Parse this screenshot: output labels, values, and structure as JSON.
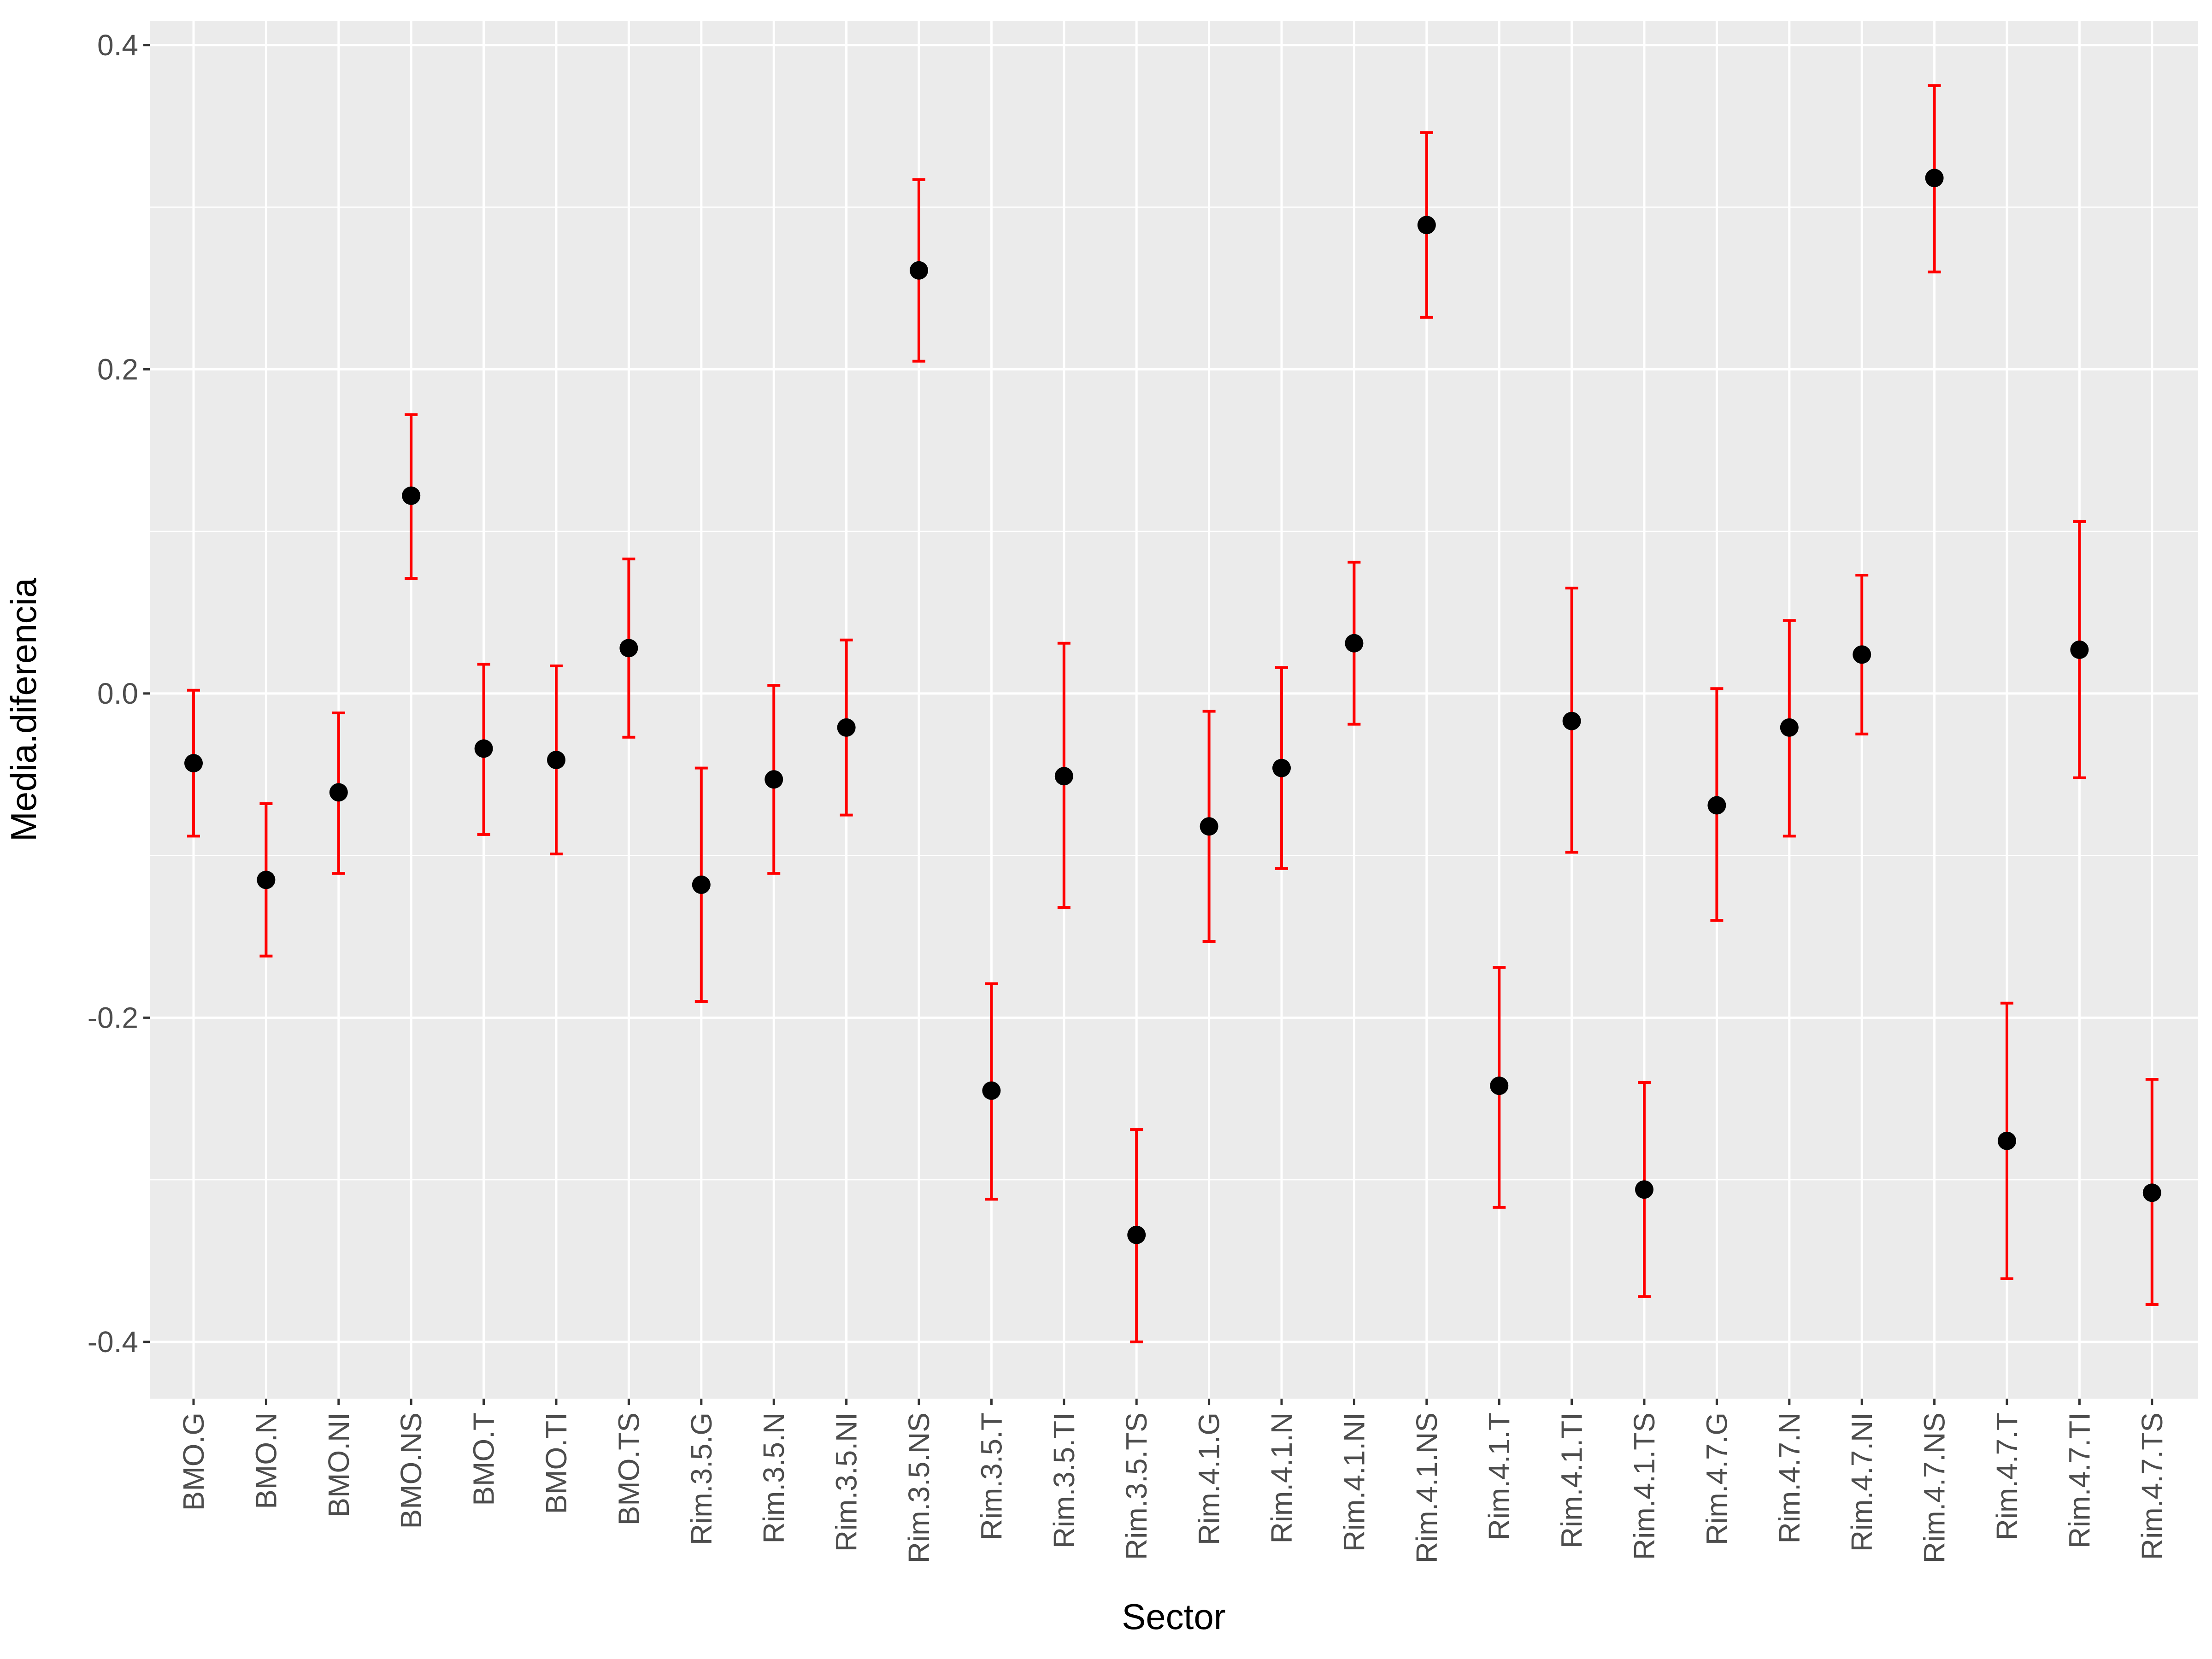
{
  "chart_data": {
    "type": "scatter",
    "title": "",
    "xlabel": "Sector",
    "ylabel": "Media.diferencia",
    "ylim": [
      -0.435,
      0.415
    ],
    "yticks": [
      -0.4,
      -0.2,
      0.0,
      0.2,
      0.4
    ],
    "ytick_labels": [
      "-0.4",
      "-0.2",
      "0.0",
      "0.2",
      "0.4"
    ],
    "grid": true,
    "legend": "none",
    "colors": {
      "panel": "#ebebeb",
      "grid": "#ffffff",
      "point": "#000000",
      "errorbar": "#ff0000",
      "tick": "#4d4d4d"
    },
    "categories": [
      "BMO.G",
      "BMO.N",
      "BMO.NI",
      "BMO.NS",
      "BMO.T",
      "BMO.TI",
      "BMO.TS",
      "Rim.3.5.G",
      "Rim.3.5.N",
      "Rim.3.5.NI",
      "Rim.3.5.NS",
      "Rim.3.5.T",
      "Rim.3.5.TI",
      "Rim.3.5.TS",
      "Rim.4.1.G",
      "Rim.4.1.N",
      "Rim.4.1.NI",
      "Rim.4.1.NS",
      "Rim.4.1.T",
      "Rim.4.1.TI",
      "Rim.4.1.TS",
      "Rim.4.7.G",
      "Rim.4.7.N",
      "Rim.4.7.NI",
      "Rim.4.7.NS",
      "Rim.4.7.T",
      "Rim.4.7.TI",
      "Rim.4.7.TS"
    ],
    "values": [
      -0.043,
      -0.115,
      -0.061,
      0.122,
      -0.034,
      -0.041,
      0.028,
      -0.118,
      -0.053,
      -0.021,
      0.261,
      -0.245,
      -0.051,
      -0.334,
      -0.082,
      -0.046,
      0.031,
      0.289,
      -0.242,
      -0.017,
      -0.306,
      -0.069,
      -0.021,
      0.024,
      0.318,
      -0.276,
      0.027,
      -0.308
    ],
    "lower": [
      -0.088,
      -0.162,
      -0.111,
      0.071,
      -0.087,
      -0.099,
      -0.027,
      -0.19,
      -0.111,
      -0.075,
      0.205,
      -0.312,
      -0.132,
      -0.4,
      -0.153,
      -0.108,
      -0.019,
      0.232,
      -0.317,
      -0.098,
      -0.372,
      -0.14,
      -0.088,
      -0.025,
      0.26,
      -0.361,
      -0.052,
      -0.377
    ],
    "upper": [
      0.002,
      -0.068,
      -0.012,
      0.172,
      0.018,
      0.017,
      0.083,
      -0.046,
      0.005,
      0.033,
      0.317,
      -0.179,
      0.031,
      -0.269,
      -0.011,
      0.016,
      0.081,
      0.346,
      -0.169,
      0.065,
      -0.24,
      0.003,
      0.045,
      0.073,
      0.375,
      -0.191,
      0.106,
      -0.238
    ]
  }
}
